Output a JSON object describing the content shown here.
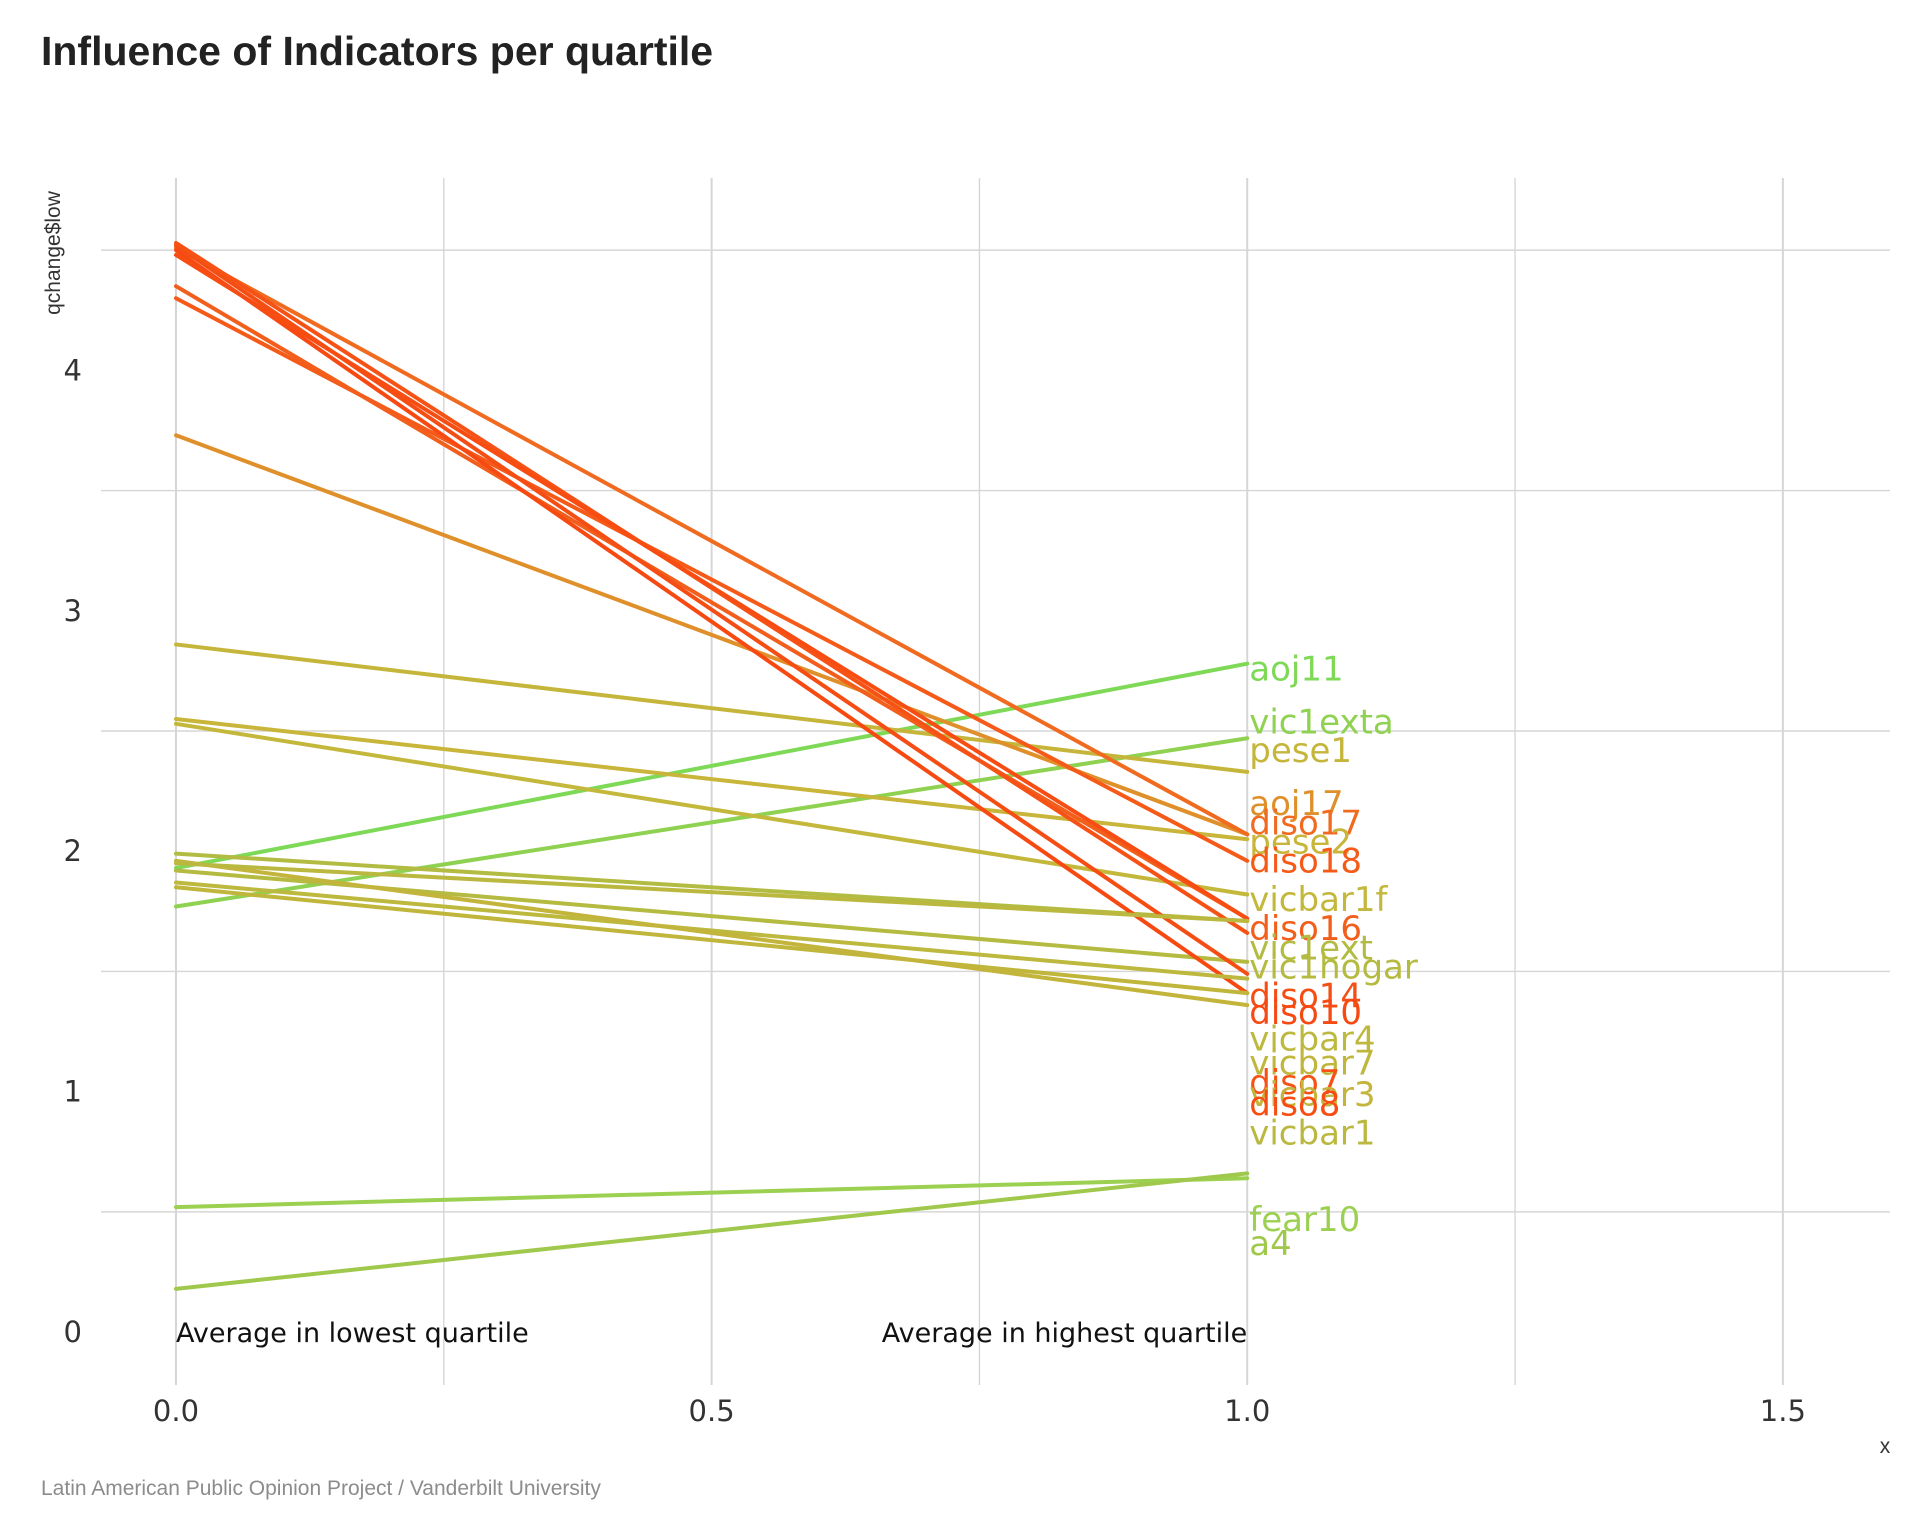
{
  "chart_data": {
    "type": "line",
    "title": "Influence of Indicators per quartile",
    "caption": "Latin American Public Opinion Project / Vanderbilt University",
    "xlabel": "x",
    "ylabel": "qchange$low",
    "xlim": [
      -0.07,
      1.6
    ],
    "ylim": [
      -0.22,
      4.8
    ],
    "x_ticks": [
      "0.0",
      "0.5",
      "1.0",
      "1.5"
    ],
    "y_ticks": [
      "0",
      "1",
      "2",
      "3",
      "4"
    ],
    "grid": true,
    "legend": "none",
    "annotations": [
      {
        "text": "Average in lowest quartile",
        "x": 0.0,
        "y": 0.0,
        "anchor": "start"
      },
      {
        "text": "Average in highest quartile",
        "x": 1.0,
        "y": 0.0,
        "anchor": "end"
      }
    ],
    "x": [
      0,
      1
    ],
    "series": [
      {
        "name": "aoj11",
        "values": [
          1.93,
          2.78
        ],
        "color": "#7ed957",
        "label_y": 2.75
      },
      {
        "name": "vic1exta",
        "values": [
          1.77,
          2.47
        ],
        "color": "#8fd150",
        "label_y": 2.53
      },
      {
        "name": "pese1",
        "values": [
          2.86,
          2.33
        ],
        "color": "#c5b63b",
        "label_y": 2.41
      },
      {
        "name": "aoj17",
        "values": [
          3.73,
          2.07
        ],
        "color": "#e0902a",
        "label_y": 2.19
      },
      {
        "name": "diso17",
        "values": [
          4.51,
          2.07
        ],
        "color": "#f06a20",
        "label_y": 2.11
      },
      {
        "name": "pese2",
        "values": [
          2.55,
          2.05
        ],
        "color": "#c8b53a",
        "label_y": 2.03
      },
      {
        "name": "diso18",
        "values": [
          4.3,
          1.96
        ],
        "color": "#f55a18",
        "label_y": 1.95
      },
      {
        "name": "vicbar1f",
        "values": [
          2.53,
          1.82
        ],
        "color": "#c4b83c",
        "label_y": 1.79
      },
      {
        "name": "diso16",
        "values": [
          4.35,
          1.72
        ],
        "color": "#f25e1c",
        "label_y": 1.67
      },
      {
        "name": "vic1ext",
        "values": [
          1.99,
          1.71
        ],
        "color": "#b3bc42",
        "label_y": 1.59
      },
      {
        "name": "vic1hogar",
        "values": [
          1.92,
          1.54
        ],
        "color": "#b5ba40",
        "label_y": 1.51
      },
      {
        "name": "diso14",
        "values": [
          4.52,
          1.49
        ],
        "color": "#f54e14",
        "label_y": 1.39
      },
      {
        "name": "diso10",
        "values": [
          4.5,
          1.41
        ],
        "color": "#f74a12",
        "label_y": 1.32
      },
      {
        "name": "vicbar4",
        "values": [
          1.87,
          1.47
        ],
        "color": "#bdb83e",
        "label_y": 1.21
      },
      {
        "name": "vicbar7",
        "values": [
          1.85,
          1.41
        ],
        "color": "#c0b63c",
        "label_y": 1.11
      },
      {
        "name": "diso7",
        "values": [
          4.53,
          1.66
        ],
        "color": "#f65216",
        "label_y": 1.03
      },
      {
        "name": "vicbar3",
        "values": [
          1.96,
          1.36
        ],
        "color": "#c3b43c",
        "label_y": 0.98
      },
      {
        "name": "diso8",
        "values": [
          4.48,
          1.72
        ],
        "color": "#f74d12",
        "label_y": 0.94
      },
      {
        "name": "vicbar1",
        "values": [
          1.95,
          1.71
        ],
        "color": "#bbb840",
        "label_y": 0.82
      },
      {
        "name": "fear10",
        "values": [
          0.52,
          0.64
        ],
        "color": "#9cd050",
        "label_y": 0.46
      },
      {
        "name": "a4",
        "values": [
          0.18,
          0.66
        ],
        "color": "#a0c84c",
        "label_y": 0.36
      }
    ]
  }
}
